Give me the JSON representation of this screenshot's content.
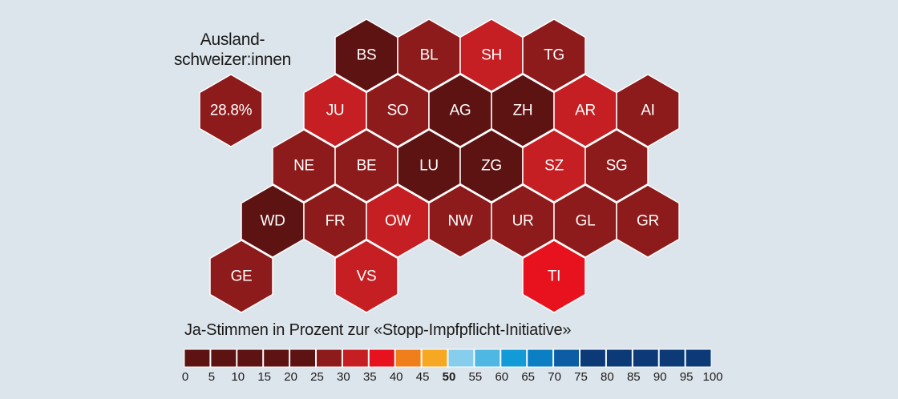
{
  "abroad": {
    "title_line1": "Ausland-",
    "title_line2": "schweizer:innen",
    "value": "28.8%",
    "color": "#8e1b1b"
  },
  "cantons": [
    {
      "code": "BS",
      "row": 0,
      "col": 0,
      "color": "#5e1313"
    },
    {
      "code": "BL",
      "row": 0,
      "col": 1,
      "color": "#8e1b1b"
    },
    {
      "code": "SH",
      "row": 0,
      "col": 2,
      "color": "#c61f23"
    },
    {
      "code": "TG",
      "row": 0,
      "col": 3,
      "color": "#8e1b1b"
    },
    {
      "code": "JU",
      "row": 1,
      "col": 0,
      "color": "#c61f23"
    },
    {
      "code": "SO",
      "row": 1,
      "col": 1,
      "color": "#8e1b1b"
    },
    {
      "code": "AG",
      "row": 1,
      "col": 2,
      "color": "#5e1313"
    },
    {
      "code": "ZH",
      "row": 1,
      "col": 3,
      "color": "#5e1313"
    },
    {
      "code": "AR",
      "row": 1,
      "col": 4,
      "color": "#c61f23"
    },
    {
      "code": "AI",
      "row": 1,
      "col": 5,
      "color": "#8e1b1b"
    },
    {
      "code": "NE",
      "row": 2,
      "col": 0,
      "color": "#8e1b1b"
    },
    {
      "code": "BE",
      "row": 2,
      "col": 1,
      "color": "#8e1b1b"
    },
    {
      "code": "LU",
      "row": 2,
      "col": 2,
      "color": "#5e1313"
    },
    {
      "code": "ZG",
      "row": 2,
      "col": 3,
      "color": "#5e1313"
    },
    {
      "code": "SZ",
      "row": 2,
      "col": 4,
      "color": "#c61f23"
    },
    {
      "code": "SG",
      "row": 2,
      "col": 5,
      "color": "#8e1b1b"
    },
    {
      "code": "WD",
      "row": 3,
      "col": 0,
      "color": "#5e1313"
    },
    {
      "code": "FR",
      "row": 3,
      "col": 1,
      "color": "#8e1b1b"
    },
    {
      "code": "OW",
      "row": 3,
      "col": 2,
      "color": "#c61f23"
    },
    {
      "code": "NW",
      "row": 3,
      "col": 3,
      "color": "#8e1b1b"
    },
    {
      "code": "UR",
      "row": 3,
      "col": 4,
      "color": "#8e1b1b"
    },
    {
      "code": "GL",
      "row": 3,
      "col": 5,
      "color": "#8e1b1b"
    },
    {
      "code": "GR",
      "row": 3,
      "col": 6,
      "color": "#8e1b1b"
    },
    {
      "code": "GE",
      "row": 4,
      "col": 0,
      "color": "#8e1b1b"
    },
    {
      "code": "VS",
      "row": 4,
      "col": 2,
      "color": "#c61f23"
    },
    {
      "code": "TI",
      "row": 4,
      "col": 5,
      "color": "#e8121e"
    }
  ],
  "legend": {
    "title": "Ja-Stimmen in Prozent zur «Stopp-Impfpflicht-Initiative»",
    "colors": [
      "#5e1313",
      "#5e1313",
      "#5e1313",
      "#5e1313",
      "#5e1313",
      "#8e1b1b",
      "#c61f23",
      "#e8121e",
      "#f07e1b",
      "#f7a823",
      "#87cdec",
      "#4eb7e4",
      "#139bd8",
      "#0a7fc3",
      "#0c5da4",
      "#0b3a77",
      "#0b3a77",
      "#0b3a77",
      "#0b3a77",
      "#0b3a77"
    ],
    "ticks": [
      "0",
      "5",
      "10",
      "15",
      "20",
      "25",
      "30",
      "35",
      "40",
      "45",
      "50",
      "55",
      "60",
      "65",
      "70",
      "75",
      "80",
      "85",
      "90",
      "95",
      "100"
    ],
    "bold_tick": "50"
  }
}
